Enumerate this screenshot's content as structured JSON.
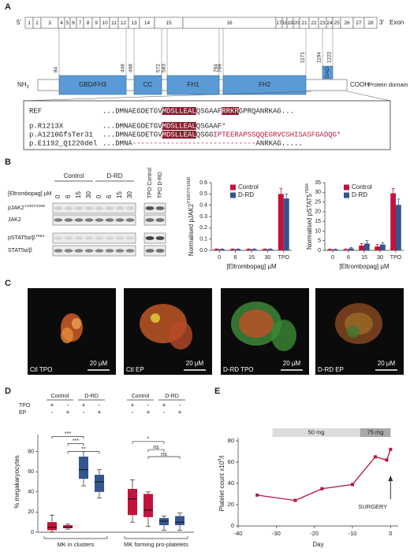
{
  "panels": [
    "A",
    "B",
    "C",
    "D",
    "E"
  ],
  "panel_a": {
    "five_prime": "5'",
    "three_prime": "3'",
    "exon_title": "Exon",
    "exons": [
      1,
      2,
      3,
      4,
      5,
      6,
      7,
      8,
      9,
      10,
      11,
      12,
      13,
      14,
      15,
      16,
      17,
      18,
      19,
      20,
      21,
      22,
      23,
      24,
      25,
      26,
      27,
      28
    ],
    "positions": [
      84,
      449,
      468,
      572,
      583,
      764,
      769,
      1171,
      1194,
      1222
    ],
    "nterm": [
      {
        "t": "NH"
      },
      {
        "t": "2",
        "sub": true
      }
    ],
    "cterm": "COOH",
    "protein_title": "Protein domain",
    "domains": [
      "GBD/FH3",
      "CC",
      "FH1",
      "FH2",
      "DAD"
    ],
    "domain_color": "#5b9bd5",
    "highlight_color": "#8b1a2b",
    "mutant_color": "#c0143c",
    "sequences": [
      {
        "name": "REF",
        "segments": [
          {
            "t": "...DMNAEGDETGV"
          },
          {
            "t": "MDSLLEAL",
            "style": "hl"
          },
          {
            "t": "QSGAAF"
          },
          {
            "t": "RRKR",
            "style": "hl"
          },
          {
            "t": "GPRQANRKAG..."
          }
        ]
      },
      {
        "name": "p.R1213X",
        "segments": [
          {
            "t": "...DMNAEGDETGV"
          },
          {
            "t": "MDSLLEAL",
            "style": "hl"
          },
          {
            "t": "QSGAAF"
          },
          {
            "t": "*",
            "style": "red"
          }
        ]
      },
      {
        "name": "p.A1210GfsTer31",
        "segments": [
          {
            "t": "...DMNAEGDETGV"
          },
          {
            "t": "MDSLLEAL",
            "style": "hl"
          },
          {
            "t": "QSGG"
          },
          {
            "t": "IPTEERAPSSQQEGRVCSHISASFGADQG*",
            "style": "red"
          }
        ]
      },
      {
        "name": "p.E1192_Q1220del",
        "segments": [
          {
            "t": "...DMNA"
          },
          {
            "t": "-----------------------------",
            "style": "red"
          },
          {
            "t": "ANRKAG....."
          }
        ]
      }
    ]
  },
  "panel_b": {
    "groups": [
      "Control",
      "D-RD"
    ],
    "tpo": [
      "TPO Control",
      "TPO D-RD"
    ],
    "dose_label": "[Eltrombopag] µM",
    "doses": [
      0,
      6,
      15,
      30,
      0,
      6,
      15,
      30
    ],
    "rows": [
      [
        {
          "t": "pJAK2"
        },
        {
          "t": "Y1007/1008",
          "sup": true
        }
      ],
      [
        {
          "t": "JAK2"
        }
      ],
      [
        {
          "t": "pSTAT5α/β"
        },
        {
          "t": "Y694",
          "sup": true
        }
      ],
      [
        {
          "t": "STAT5α/β"
        }
      ]
    ]
  },
  "panel_c": {
    "images": [
      {
        "caption": "Ctl TPO",
        "scale": "20 µM"
      },
      {
        "caption": "Ctl EP",
        "scale": "20 µM"
      },
      {
        "caption": "D-RD TPO",
        "scale": "20 µM"
      },
      {
        "caption": "D-RD EP",
        "scale": "20 µM"
      }
    ]
  },
  "chart_data": [
    {
      "type": "bar",
      "categories": [
        0,
        6,
        15,
        30,
        "TPO"
      ],
      "xlabel": "[Eltrombopag] µM",
      "ylabel": [
        {
          "t": "Normalised pJAK2"
        },
        {
          "t": "Y1007/Y1008",
          "sup": true
        }
      ],
      "ylim": [
        0,
        0.6
      ],
      "yticks": [
        {
          "value": 0,
          "label": "0.0"
        },
        0.1,
        0.2,
        0.3,
        0.4,
        0.5,
        0.6
      ],
      "series": [
        {
          "name": "Control",
          "color": "#c0143c",
          "values": [
            0.01,
            0.01,
            0.01,
            0.01,
            0.5
          ],
          "errors": [
            0.003,
            0.003,
            0.003,
            0.003,
            0.05
          ]
        },
        {
          "name": "D-RD",
          "color": "#34558f",
          "values": [
            0.01,
            0.01,
            0.01,
            0.01,
            0.46
          ],
          "errors": [
            0.003,
            0.003,
            0.003,
            0.003,
            0.04
          ]
        }
      ]
    },
    {
      "type": "bar",
      "categories": [
        0,
        6,
        15,
        30,
        "TPO"
      ],
      "xlabel": "[Eltrombopag] µM",
      "ylabel": [
        {
          "t": "Normalised pSTAT5"
        },
        {
          "t": "Y694",
          "sup": true
        }
      ],
      "ylim": [
        0,
        35
      ],
      "yticks": [
        0,
        5,
        10,
        15,
        20,
        25,
        30,
        35
      ],
      "series": [
        {
          "name": "Control",
          "color": "#c0143c",
          "values": [
            0.5,
            0.5,
            2.5,
            2,
            29.5
          ],
          "errors": [
            0.2,
            0.3,
            1,
            1,
            2.5
          ]
        },
        {
          "name": "D-RD",
          "color": "#34558f",
          "values": [
            0.5,
            1,
            3.5,
            3,
            23.5
          ],
          "errors": [
            0.2,
            0.5,
            1.5,
            1,
            3
          ]
        }
      ]
    },
    {
      "type": "box",
      "header": [
        "Control",
        "D-RD",
        "Control",
        "D-RD"
      ],
      "rows": [
        {
          "name": "TPO",
          "signs": [
            "+",
            "-",
            "+",
            "-",
            "+",
            "-",
            "+",
            "-"
          ]
        },
        {
          "name": "EP",
          "signs": [
            "-",
            "+",
            "-",
            "+",
            "-",
            "+",
            "-",
            "+"
          ]
        }
      ],
      "groups": [
        "MK in clusters",
        "MK forming pro-platelets"
      ],
      "ylabel": "% megakaryocytes",
      "ylim": [
        0,
        100
      ],
      "yticks": [
        0,
        20,
        40,
        60,
        80
      ],
      "annotations": [
        "***",
        "***",
        "**",
        "*",
        "ns",
        "ns"
      ],
      "series": [
        {
          "name": "Control",
          "color": "#c0143c",
          "boxes": [
            [
              0,
              2,
              5,
              10,
              17
            ],
            [
              3,
              4,
              5,
              7,
              8
            ],
            [
              10,
              17,
              33,
              43,
              52
            ],
            [
              6,
              15,
              22,
              38,
              40
            ]
          ]
        },
        {
          "name": "D-RD",
          "color": "#34558f",
          "boxes": [
            [
              46,
              53,
              62,
              75,
              80
            ],
            [
              34,
              40,
              50,
              57,
              62
            ],
            [
              2,
              7,
              11,
              14,
              16
            ],
            [
              2,
              7,
              10,
              16,
              19
            ]
          ]
        }
      ],
      "extra_note": null
    },
    {
      "type": "line",
      "xlabel": "Day",
      "ylabel": [
        {
          "t": "Platelet count x10"
        },
        {
          "t": "9",
          "sup": true
        },
        {
          "t": "/l"
        }
      ],
      "x": [
        -35,
        -25,
        -18,
        -10,
        -4,
        -1,
        0
      ],
      "values": [
        29,
        24,
        35,
        39,
        65,
        62,
        72
      ],
      "color": "#b5173f",
      "xlim": [
        -40,
        2
      ],
      "xticks": [
        -40,
        -30,
        -20,
        -10,
        0
      ],
      "ylim": [
        0,
        80
      ],
      "yticks": [
        0,
        20,
        40,
        60,
        80
      ],
      "doses": [
        {
          "label": "50 mg",
          "start": -31,
          "end": -8,
          "color": "#dcdcdc"
        },
        {
          "label": "75 mg",
          "start": -8,
          "end": 0,
          "color": "#a9a9a9"
        }
      ],
      "annotation": "SURGERY"
    }
  ]
}
